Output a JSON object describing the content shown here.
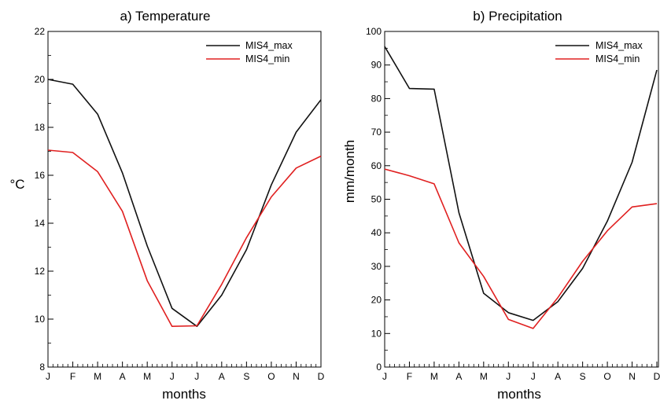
{
  "chart_data": [
    {
      "type": "line",
      "title": "a) Temperature",
      "xlabel": "months",
      "ylabel": "°C",
      "categories": [
        "J",
        "F",
        "M",
        "A",
        "M",
        "J",
        "J",
        "A",
        "S",
        "O",
        "N",
        "D"
      ],
      "ylim": [
        8,
        22
      ],
      "yticks": [
        8,
        10,
        12,
        14,
        16,
        18,
        20,
        22
      ],
      "grid": false,
      "legend_position": "top-right",
      "series": [
        {
          "name": "MIS4_max",
          "color": "#111111",
          "values": [
            20.0,
            19.8,
            18.55,
            16.1,
            13.05,
            10.45,
            9.7,
            11.0,
            12.9,
            15.6,
            17.8,
            19.15
          ]
        },
        {
          "name": "MIS4_min",
          "color": "#e02020",
          "values": [
            17.05,
            16.95,
            16.15,
            14.5,
            11.6,
            9.7,
            9.72,
            11.45,
            13.4,
            15.1,
            16.3,
            16.8
          ]
        }
      ]
    },
    {
      "type": "line",
      "title": "b) Precipitation",
      "xlabel": "months",
      "ylabel": "mm/month",
      "categories": [
        "J",
        "F",
        "M",
        "A",
        "M",
        "J",
        "J",
        "A",
        "S",
        "O",
        "N",
        "D"
      ],
      "ylim": [
        0,
        100
      ],
      "yticks": [
        0,
        10,
        20,
        30,
        40,
        50,
        60,
        70,
        80,
        90,
        100
      ],
      "grid": false,
      "legend_position": "top-right",
      "series": [
        {
          "name": "MIS4_max",
          "color": "#111111",
          "values": [
            95.5,
            83.0,
            82.8,
            46.0,
            22.0,
            16.2,
            13.9,
            19.5,
            29.4,
            43.5,
            61.0,
            88.5
          ]
        },
        {
          "name": "MIS4_min",
          "color": "#e02020",
          "values": [
            59.0,
            57.0,
            54.6,
            37.0,
            27.0,
            14.2,
            11.5,
            20.7,
            31.5,
            40.6,
            47.7,
            48.7
          ]
        }
      ]
    }
  ]
}
